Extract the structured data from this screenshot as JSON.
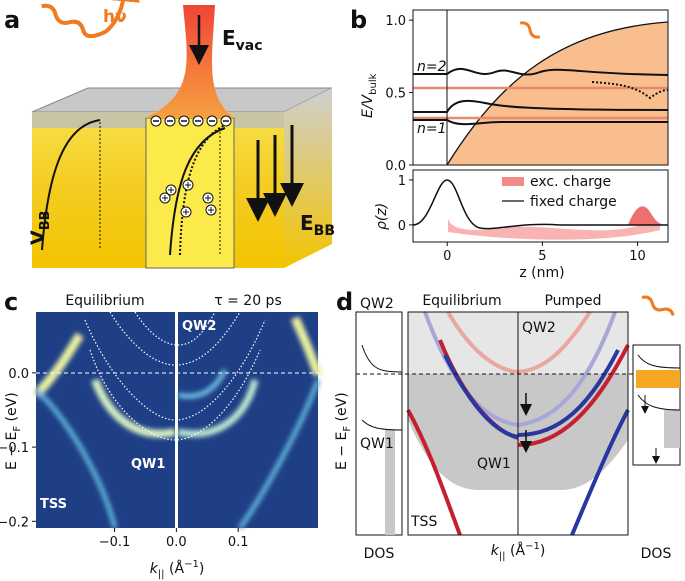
{
  "panel_a": {
    "letter": "a",
    "photon": "hν",
    "e_vac": {
      "main": "E",
      "sub": "vac"
    },
    "v_bb": {
      "main": "V",
      "sub": "BB"
    },
    "e_bb": {
      "main": "E",
      "sub": "BB"
    }
  },
  "panel_b": {
    "letter": "b",
    "xlabel": "z (nm)",
    "xlim": [
      -1.8,
      11.6
    ],
    "xticks": [
      0,
      5,
      10
    ],
    "top": {
      "ylabel": {
        "main": "E/V",
        "sub": "bulk"
      },
      "ylim": [
        0,
        1.07
      ],
      "yticks": [
        {
          "value": 0,
          "label": "0.0"
        },
        0.5,
        {
          "value": 1,
          "label": "1.0"
        }
      ],
      "annotations": [
        "n=2",
        "n=1"
      ]
    },
    "bottom": {
      "ylabel": "ρ(z)",
      "ylim": [
        -0.38,
        1.22
      ],
      "yticks": [
        0,
        1
      ],
      "legend": [
        "exc. charge",
        "fixed charge"
      ]
    }
  },
  "panel_c": {
    "letter": "c",
    "titles": [
      "Equilibrium",
      "τ = 20 ps"
    ],
    "labels": [
      "QW2",
      "QW1",
      "TSS"
    ],
    "ylabel": {
      "main": "E − E",
      "sub": "F",
      "unit": " (eV)"
    },
    "xlabel": {
      "main": "k",
      "sub": "||",
      "unit": " (Å",
      "sup": "−1",
      "close": ")"
    },
    "ylim": [
      -0.209,
      0.082
    ],
    "yticks": [
      {
        "value": 0,
        "label": "0.0"
      },
      {
        "value": -0.1,
        "label": "−0.1"
      },
      {
        "value": -0.2,
        "label": "−0.2"
      }
    ],
    "xlim": [
      -0.227,
      0.229
    ],
    "xticks": [
      {
        "value": -0.1,
        "label": "−0.1"
      },
      {
        "value": 0,
        "label": "0.0"
      },
      0.1
    ]
  },
  "panel_d": {
    "letter": "d",
    "titles": [
      "Equilibrium",
      "Pumped"
    ],
    "labels": [
      "QW2",
      "QW1",
      "QW2",
      "QW1",
      "TSS"
    ],
    "dos": [
      "DOS",
      "DOS"
    ],
    "ylabel": {
      "main": "E − E",
      "sub": "F",
      "unit": " (eV)"
    },
    "xlabel": {
      "main": "k",
      "sub": "||",
      "unit": " (Å",
      "sup": "−1",
      "close": ")"
    }
  }
}
